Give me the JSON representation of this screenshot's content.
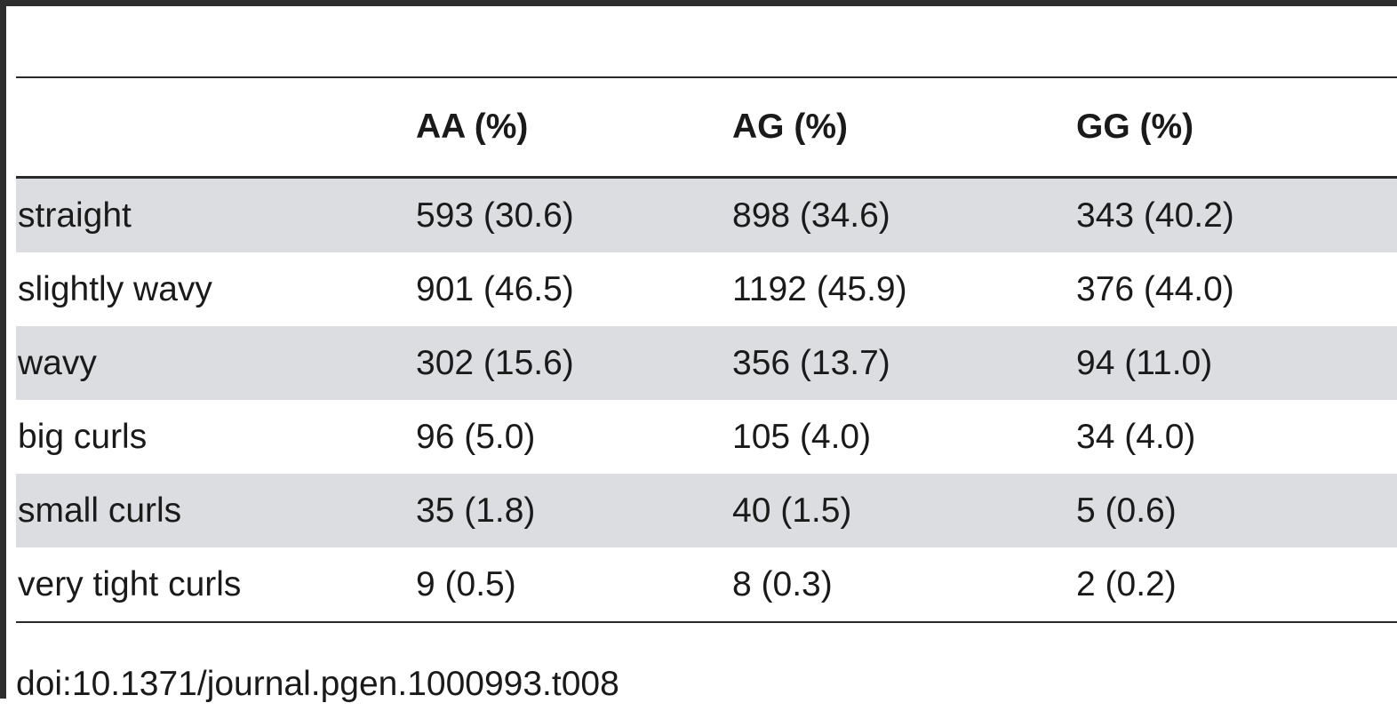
{
  "table": {
    "columns": [
      "",
      "AA (%)",
      "AG (%)",
      "GG (%)"
    ],
    "rows": [
      {
        "label": "straight",
        "aa": "593 (30.6)",
        "ag": "898 (34.6)",
        "gg": "343 (40.2)"
      },
      {
        "label": "slightly wavy",
        "aa": "901 (46.5)",
        "ag": "1192 (45.9)",
        "gg": "376 (44.0)"
      },
      {
        "label": "wavy",
        "aa": "302 (15.6)",
        "ag": "356 (13.7)",
        "gg": "94 (11.0)"
      },
      {
        "label": "big curls",
        "aa": "96 (5.0)",
        "ag": "105 (4.0)",
        "gg": "34 (4.0)"
      },
      {
        "label": "small curls",
        "aa": "35 (1.8)",
        "ag": "40 (1.5)",
        "gg": "5 (0.6)"
      },
      {
        "label": "very tight curls",
        "aa": "9 (0.5)",
        "ag": "8 (0.3)",
        "gg": "2 (0.2)"
      }
    ]
  },
  "footer": {
    "doi": "doi:10.1371/journal.pgen.1000993.t008"
  },
  "colors": {
    "rule": "#2a2a2a",
    "row_shade": "#dcdde0",
    "text": "#1a1a1a"
  }
}
